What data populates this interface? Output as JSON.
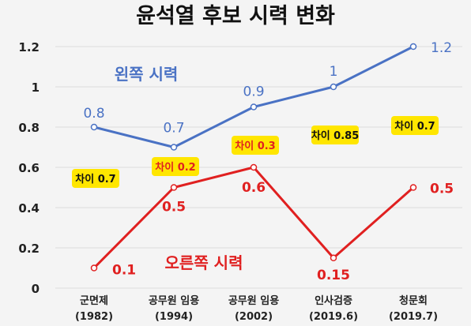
{
  "chart_data": {
    "type": "line",
    "title": "윤석열 후보 시력 변화",
    "categories": [
      [
        "군면제",
        "(1982)"
      ],
      [
        "공무원 임용",
        "(1994)"
      ],
      [
        "공무원 임용",
        "(2002)"
      ],
      [
        "인사검증",
        "(2019.6)"
      ],
      [
        "청문회",
        "(2019.7)"
      ]
    ],
    "series": [
      {
        "name": "왼쪽 시력",
        "values": [
          0.8,
          0.7,
          0.9,
          1,
          1.2
        ],
        "value_labels": [
          "0.8",
          "0.7",
          "0.9",
          "1",
          "1.2"
        ],
        "color": "#4a72c4"
      },
      {
        "name": "오른쪽 시력",
        "values": [
          0.1,
          0.5,
          0.6,
          0.15,
          0.5
        ],
        "value_labels": [
          "0.1",
          "0.5",
          "0.6",
          "0.15",
          "0.5"
        ],
        "color": "#e02020"
      }
    ],
    "differences": [
      "차이 0.7",
      "차이 0.2",
      "차이 0.3",
      "차이 0.85",
      "차이 0.7"
    ],
    "y_ticks": [
      "0",
      "0.2",
      "0.4",
      "0.6",
      "0.8",
      "1",
      "1.2"
    ],
    "ylim": [
      0,
      1.2
    ],
    "grid": true,
    "colors": {
      "badge": "#ffe600",
      "grid": "#dcdcdc"
    }
  }
}
